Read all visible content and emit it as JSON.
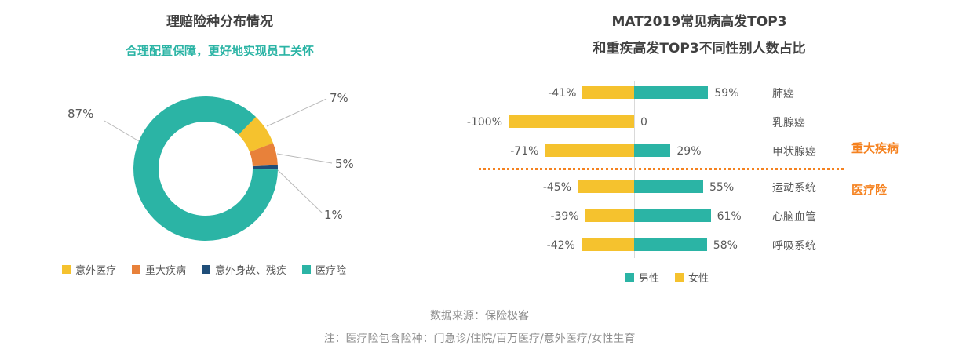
{
  "footer": {
    "source": "数据来源：保险极客",
    "note": "注：医疗险包含险种：门急诊/住院/百万医疗/意外医疗/女性生育"
  },
  "chart_data": [
    {
      "type": "pie",
      "donut": true,
      "title": "理赔险种分布情况",
      "subtitle": "合理配置保障，更好地实现员工关怀",
      "labels": [
        "意外医疗",
        "重大疾病",
        "意外身故、残疾",
        "医疗险"
      ],
      "values": [
        7,
        5,
        1,
        87
      ],
      "colors": [
        "#F5C22E",
        "#E8813A",
        "#1F4E79",
        "#2BB4A5"
      ],
      "legend_position": "bottom"
    },
    {
      "type": "bar",
      "orientation": "horizontal-diverging",
      "title": "MAT2019常见病高发TOP3",
      "subtitle": "和重疾高发TOP3不同性别人数占比",
      "categories": [
        "肺癌",
        "乳腺癌",
        "甲状腺癌",
        "运动系统",
        "心脑血管",
        "呼吸系统"
      ],
      "series": [
        {
          "name": "男性",
          "color": "#2BB4A5",
          "values": [
            59,
            0,
            29,
            55,
            61,
            58
          ]
        },
        {
          "name": "女性",
          "color": "#F5C22E",
          "values": [
            -41,
            -100,
            -71,
            -45,
            -39,
            -42
          ]
        }
      ],
      "xlim": [
        -100,
        100
      ],
      "grid": false,
      "legend_position": "bottom",
      "groups": {
        "top": "重大疾病",
        "bottom": "医疗险"
      },
      "separator_after_category": "甲状腺癌",
      "separator_color": "#F58220"
    }
  ]
}
